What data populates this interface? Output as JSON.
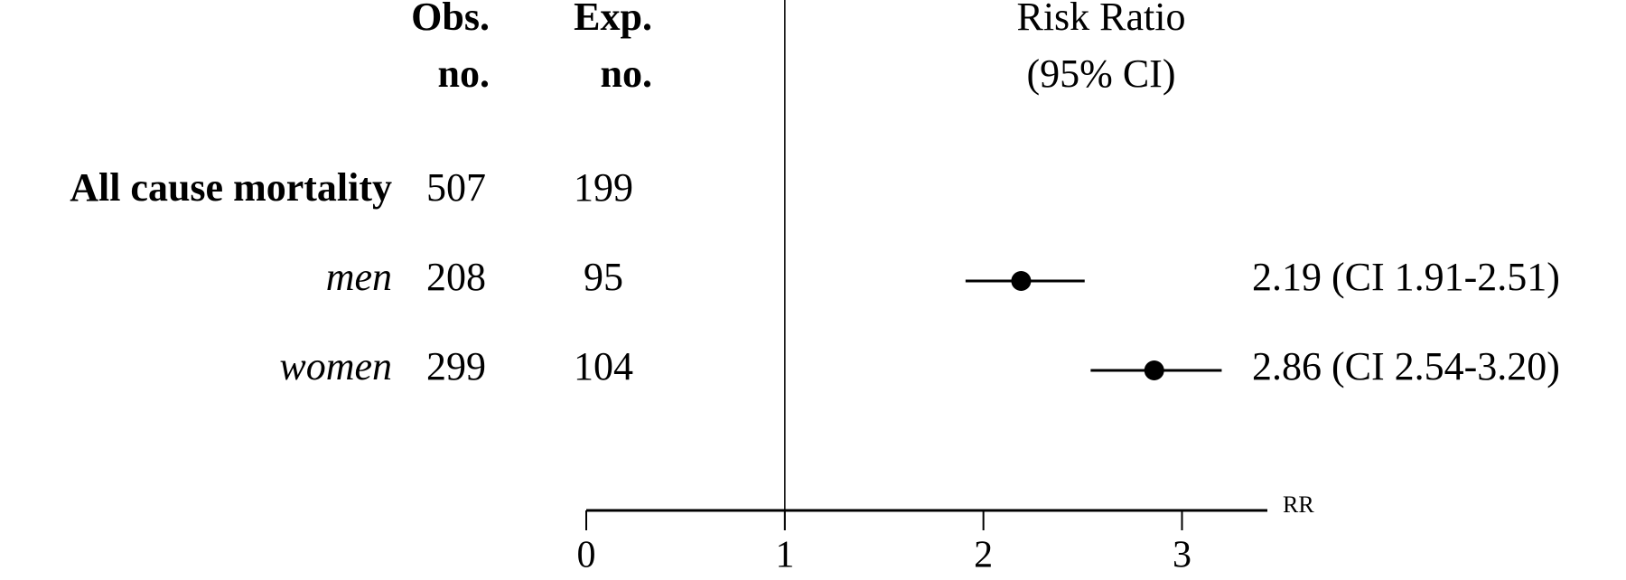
{
  "chart_data": {
    "type": "forest",
    "columns": [
      [
        "Obs.",
        "no."
      ],
      [
        "Exp.",
        "no."
      ]
    ],
    "effect_header": [
      "Risk Ratio",
      "(95% CI)"
    ],
    "rows": [
      {
        "label": "All cause mortality",
        "style": "bold",
        "obs": 507,
        "exp": 199
      },
      {
        "label": "men",
        "style": "italic",
        "obs": 208,
        "exp": 95,
        "estimate": 2.19,
        "ci": [
          1.91,
          2.51
        ],
        "value_label": "2.19 (CI 1.91-2.51)"
      },
      {
        "label": "women",
        "style": "italic",
        "obs": 299,
        "exp": 104,
        "estimate": 2.86,
        "ci": [
          2.54,
          3.2
        ],
        "value_label": "2.86 (CI 2.54-3.20)"
      }
    ],
    "xlabel": "RR",
    "xlim": [
      0,
      3.43
    ],
    "xticks": [
      0,
      1,
      2,
      3
    ],
    "reference": 1,
    "color": "#000000"
  }
}
